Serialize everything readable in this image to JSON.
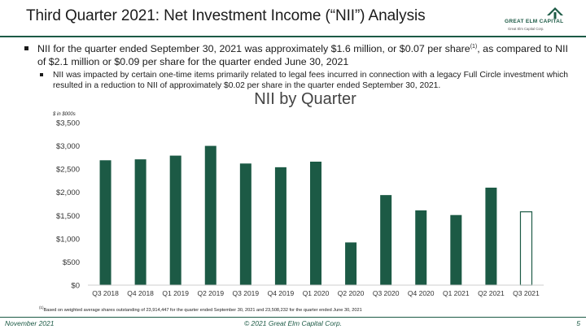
{
  "slide": {
    "title": "Third Quarter 2021: Net Investment Income (“NII”) Analysis",
    "logo_text": "GREAT ELM  CAPITAL",
    "logo_sub": "Great Elm Capital Corp.",
    "bullet1_main": "NII for the quarter ended September 30, 2021 was approximately $1.6 million, or $0.07 per share",
    "bullet1_sup": "(1)",
    "bullet1_tail": ", as compared to NII of $2.1 million or $0.09 per share for the quarter ended June 30, 2021",
    "bullet2": "NII was impacted by certain one-time items primarily related to legal fees incurred in connection with a legacy Full Circle investment which resulted in a reduction to NII of approximately $0.02 per share in the quarter ended September 30, 2021.",
    "footnote_sup": "(1)",
    "footnote_text": "Based on weighted average shares outstanding of 23,914,447 for the quarter ended September 30, 2021 and 23,508,232 for the quarter ended June 30, 2021",
    "footer_left": "November 2021",
    "footer_center": "© 2021 Great Elm Capital Corp.",
    "footer_right": "5"
  },
  "colors": {
    "brand": "#1c5a45",
    "bar": "#1c5a45"
  },
  "chart_data": {
    "type": "bar",
    "title": "NII by Quarter",
    "units_label": "$ in $000s",
    "categories": [
      "Q3 2018",
      "Q4 2018",
      "Q1 2019",
      "Q2 2019",
      "Q3 2019",
      "Q4 2019",
      "Q1 2020",
      "Q2 2020",
      "Q3 2020",
      "Q4 2020",
      "Q1 2021",
      "Q2 2021",
      "Q3 2021"
    ],
    "values": [
      2690,
      2710,
      2790,
      3000,
      2620,
      2540,
      2660,
      920,
      1940,
      1610,
      1510,
      2100,
      1580
    ],
    "highlight_last_outlined": true,
    "ylim": [
      0,
      3500
    ],
    "yticks": [
      0,
      500,
      1000,
      1500,
      2000,
      2500,
      3000,
      3500
    ],
    "ytick_labels": [
      "$0",
      "$500",
      "$1,000",
      "$1,500",
      "$2,000",
      "$2,500",
      "$3,000",
      "$3,500"
    ],
    "grid": false,
    "legend": "none"
  }
}
